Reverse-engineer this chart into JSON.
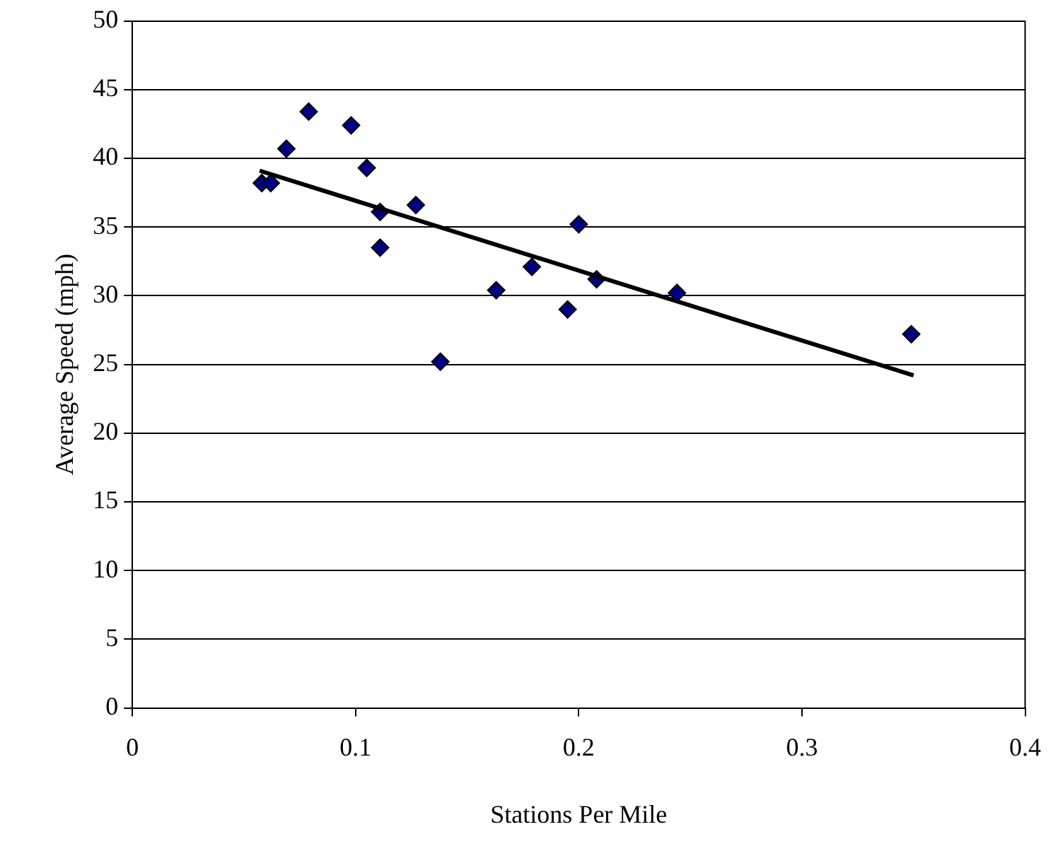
{
  "chart_data": {
    "type": "scatter",
    "xlabel": "Stations Per Mile",
    "ylabel": "Average Speed (mph)",
    "xlim": [
      0,
      0.4
    ],
    "xticks": [
      0,
      0.1,
      0.2,
      0.3,
      0.4
    ],
    "ylim": [
      0,
      50
    ],
    "yticks": [
      0,
      5,
      10,
      15,
      20,
      25,
      30,
      35,
      40,
      45,
      50
    ],
    "grid": "y",
    "legend": false,
    "marker": "diamond",
    "series": [
      {
        "color": "#000080",
        "x": [
          0.058,
          0.062,
          0.069,
          0.079,
          0.098,
          0.105,
          0.111,
          0.111,
          0.127,
          0.138,
          0.163,
          0.179,
          0.195,
          0.2,
          0.208,
          0.244,
          0.349
        ],
        "values": [
          38.2,
          38.2,
          40.7,
          43.4,
          42.4,
          39.3,
          36.1,
          33.5,
          36.6,
          25.2,
          30.4,
          32.1,
          29.0,
          35.2,
          31.2,
          30.2,
          27.2
        ]
      },
      {
        "type": "line",
        "color": "#000000",
        "marker": "none",
        "x": [
          0.057,
          0.35
        ],
        "values": [
          39.1,
          24.2
        ]
      }
    ]
  }
}
